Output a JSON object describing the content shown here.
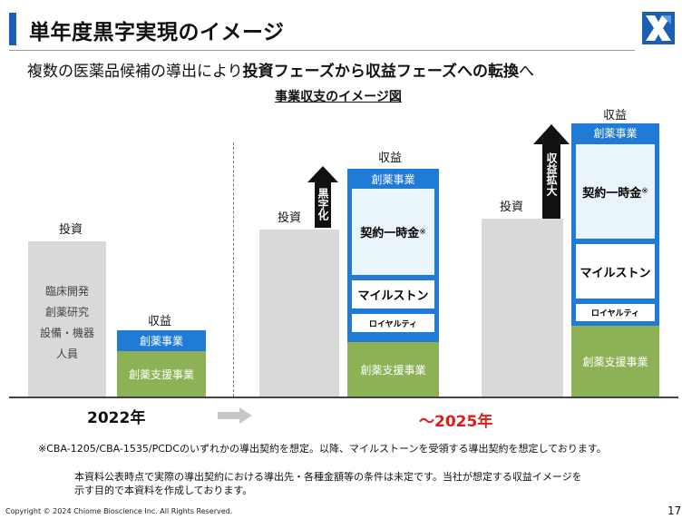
{
  "header": {
    "title": "単年度黒字実現のイメージ",
    "subtitle_pre": "複数の医薬品候補の導出により",
    "subtitle_bold": "投資フェーズから収益フェーズへの転換",
    "subtitle_post": "へ",
    "diagram_title": "事業収支のイメージ図"
  },
  "col2022": {
    "invest_label": "投資",
    "invest_items": [
      "臨床開発",
      "創薬研究",
      "設備・機器",
      "人員"
    ],
    "revenue_label": "収益",
    "drug_discovery": "創薬事業",
    "support": "創薬支援事業",
    "year": "2022年"
  },
  "col2025a": {
    "invest_label": "投資",
    "arrow_text": "黒字化",
    "revenue_label": "収益",
    "drug_discovery": "創薬事業",
    "upfront": "契約一時金",
    "upfront_mark": "※",
    "milestone": "マイルストン",
    "royalty": "ロイヤルティ",
    "support": "創薬支援事業"
  },
  "col2025b": {
    "invest_label": "投資",
    "arrow_text": "収益拡大",
    "revenue_label": "収益",
    "drug_discovery": "創薬事業",
    "upfront": "契約一時金",
    "upfront_mark": "※",
    "milestone": "マイルストン",
    "royalty": "ロイヤルティ",
    "support": "創薬支援事業"
  },
  "year_2025": "～2025年",
  "footnote": "※CBA-1205/CBA-1535/PCDCのいずれかの導出契約を想定。以降、マイルストーンを受領する導出契約を想定しております。",
  "disclaimer_line1": "本資料公表時点で実際の導出契約における導出先・各種金額等の条件は未定です。当社が想定する収益イメージを",
  "disclaimer_line2": "示す目的で本資料を作成しております。",
  "copyright": "Copyright © 2024 Chiome Bioscience Inc. All Rights Reserved.",
  "page_number": "17",
  "colors": {
    "accent_blue": "#1f7bd6",
    "green": "#8db255",
    "gray": "#d9d9d9",
    "red": "#e01b1b",
    "title_bar": "#1a5fb4"
  },
  "icons": {
    "logo": "company-logo-icon",
    "arrow_up": "up-arrow-icon",
    "arrow_right": "right-arrow-icon"
  }
}
